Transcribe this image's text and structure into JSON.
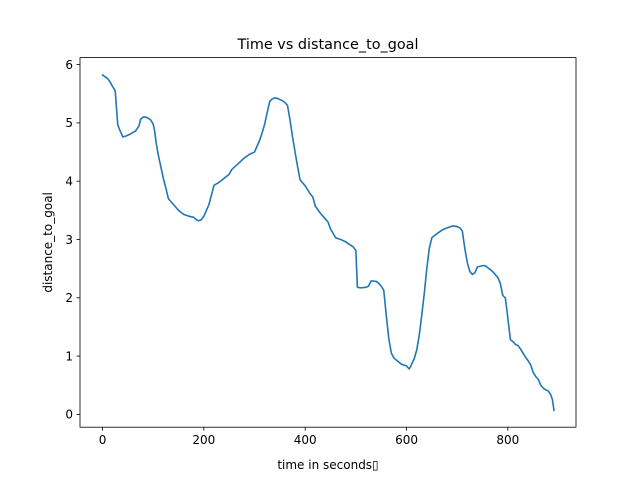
{
  "chart_data": {
    "type": "line",
    "title": "Time vs distance_to_goal",
    "xlabel": "time in seconds▯",
    "ylabel": "distance_to_goal",
    "xlim": [
      -44.5,
      934.5
    ],
    "ylim": [
      -0.22,
      6.12
    ],
    "xticks": [
      0,
      200,
      400,
      600,
      800
    ],
    "yticks": [
      0,
      1,
      2,
      3,
      4,
      5,
      6
    ],
    "grid": false,
    "legend": "none",
    "series": [
      {
        "color": "#1f77b4",
        "x": [
          0,
          10,
          15,
          20,
          25,
          30,
          33,
          37,
          40,
          45,
          55,
          65,
          72,
          75,
          80,
          85,
          90,
          95,
          100,
          103,
          106,
          110,
          115,
          120,
          125,
          130,
          135,
          140,
          150,
          160,
          170,
          180,
          185,
          190,
          195,
          200,
          210,
          220,
          230,
          240,
          250,
          255,
          260,
          270,
          280,
          290,
          300,
          310,
          315,
          320,
          325,
          330,
          335,
          340,
          345,
          350,
          355,
          360,
          365,
          370,
          375,
          380,
          385,
          390,
          395,
          400,
          410,
          415,
          420,
          425,
          430,
          435,
          440,
          445,
          450,
          460,
          470,
          480,
          490,
          495,
          500,
          503,
          510,
          520,
          525,
          530,
          540,
          545,
          550,
          555,
          560,
          565,
          570,
          575,
          580,
          590,
          600,
          603,
          605,
          608,
          611,
          615,
          620,
          625,
          630,
          635,
          640,
          645,
          650,
          660,
          670,
          680,
          690,
          695,
          700,
          705,
          710,
          715,
          720,
          725,
          730,
          735,
          740,
          750,
          755,
          760,
          770,
          780,
          785,
          790,
          795,
          800,
          805,
          810,
          815,
          820,
          825,
          830,
          835,
          840,
          845,
          850,
          855,
          860,
          865,
          870,
          875,
          880,
          885,
          888,
          891
        ],
        "y": [
          5.82,
          5.76,
          5.7,
          5.62,
          5.55,
          4.97,
          4.9,
          4.82,
          4.76,
          4.77,
          4.81,
          4.86,
          4.95,
          5.06,
          5.1,
          5.1,
          5.08,
          5.05,
          4.98,
          4.85,
          4.65,
          4.45,
          4.25,
          4.05,
          3.88,
          3.7,
          3.65,
          3.6,
          3.5,
          3.43,
          3.4,
          3.38,
          3.34,
          3.32,
          3.34,
          3.4,
          3.6,
          3.93,
          3.98,
          4.05,
          4.12,
          4.2,
          4.24,
          4.32,
          4.4,
          4.46,
          4.5,
          4.7,
          4.83,
          4.98,
          5.18,
          5.37,
          5.41,
          5.43,
          5.42,
          5.4,
          5.38,
          5.35,
          5.3,
          5.05,
          4.76,
          4.5,
          4.25,
          4.02,
          3.97,
          3.92,
          3.78,
          3.73,
          3.57,
          3.51,
          3.45,
          3.4,
          3.35,
          3.3,
          3.18,
          3.03,
          3.0,
          2.96,
          2.9,
          2.87,
          2.81,
          2.18,
          2.17,
          2.18,
          2.2,
          2.29,
          2.28,
          2.25,
          2.2,
          2.13,
          1.7,
          1.3,
          1.05,
          0.97,
          0.93,
          0.86,
          0.83,
          0.8,
          0.78,
          0.82,
          0.88,
          0.95,
          1.1,
          1.35,
          1.7,
          2.07,
          2.5,
          2.85,
          3.03,
          3.1,
          3.16,
          3.2,
          3.23,
          3.23,
          3.22,
          3.2,
          3.15,
          2.85,
          2.6,
          2.45,
          2.4,
          2.43,
          2.53,
          2.55,
          2.55,
          2.52,
          2.45,
          2.35,
          2.25,
          2.04,
          2.0,
          1.65,
          1.28,
          1.25,
          1.2,
          1.18,
          1.12,
          1.05,
          0.98,
          0.92,
          0.85,
          0.72,
          0.65,
          0.6,
          0.5,
          0.45,
          0.42,
          0.4,
          0.33,
          0.25,
          0.07
        ]
      }
    ]
  }
}
